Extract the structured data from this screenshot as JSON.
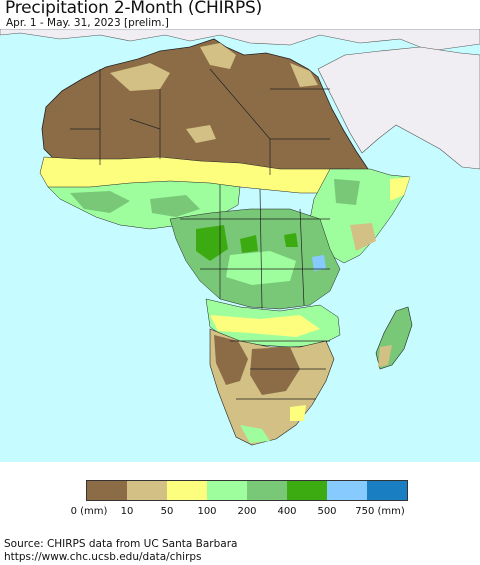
{
  "header": {
    "title": "Precipitation 2-Month (CHIRPS)",
    "subtitle": "Apr. 1 - May. 31, 2023 [prelim.]"
  },
  "map": {
    "region": "Africa",
    "ocean_color": "#c6fcff",
    "outside_region_color": "#f0eef2",
    "border_color": "#333333"
  },
  "legend": {
    "colors": [
      "#8b6c47",
      "#d2c084",
      "#fefe7e",
      "#9efe9e",
      "#78c878",
      "#3cab12",
      "#86cafe",
      "#1a7fc2"
    ],
    "labels": [
      "0 (mm)",
      "10",
      "50",
      "100",
      "200",
      "400",
      "500",
      "750 (mm)"
    ]
  },
  "footer": {
    "source_line": "Source: CHIRPS data from UC Santa Barbara",
    "url_line": "https://www.chc.ucsb.edu/data/chirps"
  }
}
